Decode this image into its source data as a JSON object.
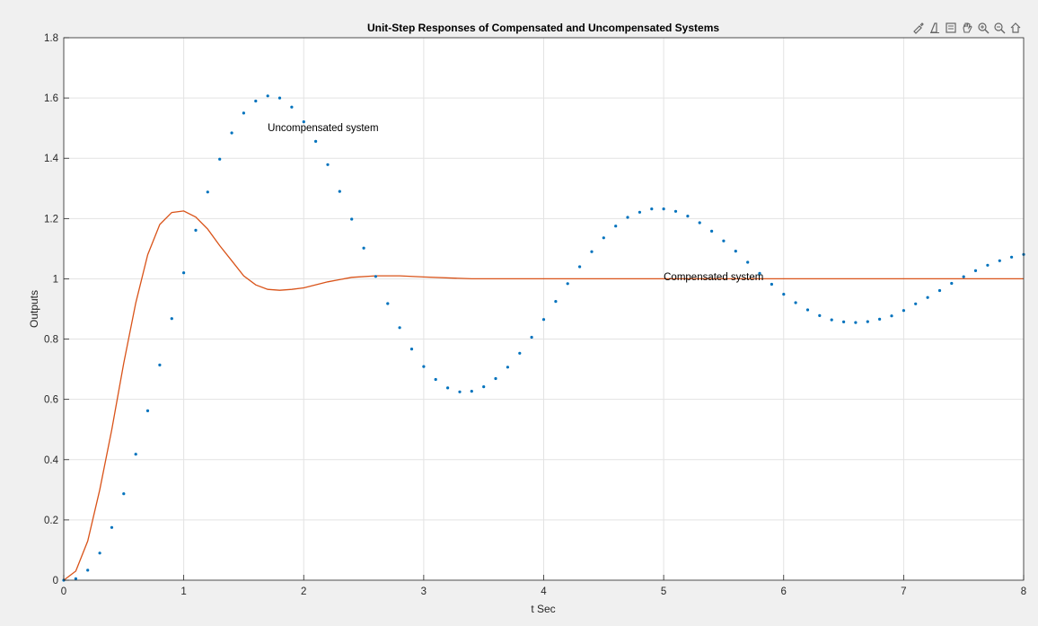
{
  "toolbar": {
    "buttons": [
      {
        "name": "brush-icon"
      },
      {
        "name": "data-tip-icon"
      },
      {
        "name": "export-icon"
      },
      {
        "name": "pan-icon"
      },
      {
        "name": "zoom-in-icon"
      },
      {
        "name": "zoom-out-icon"
      },
      {
        "name": "home-icon"
      }
    ]
  },
  "chart_data": {
    "type": "line",
    "title": "Unit-Step Responses of Compensated and Uncompensated Systems",
    "xlabel": "t Sec",
    "ylabel": "Outputs",
    "xlim": [
      0,
      8
    ],
    "ylim": [
      0,
      1.8
    ],
    "xticks": [
      "0",
      "1",
      "2",
      "3",
      "4",
      "5",
      "6",
      "7",
      "8"
    ],
    "yticks": [
      "0",
      "0.2",
      "0.4",
      "0.6",
      "0.8",
      "1",
      "1.2",
      "1.4",
      "1.6",
      "1.8"
    ],
    "grid": true,
    "annotations": [
      {
        "text": "Uncompensated system",
        "x": 1.7,
        "y": 1.49
      },
      {
        "text": "Compensated system",
        "x": 5.0,
        "y": 0.995
      }
    ],
    "colors": {
      "uncompensated": "#0072bd",
      "compensated": "#d95319",
      "grid": "#e3e3e3",
      "axes_bg": "#ffffff"
    },
    "series": [
      {
        "style": "dots",
        "x": [
          0,
          0.1,
          0.2,
          0.3,
          0.4,
          0.5,
          0.6,
          0.7,
          0.8,
          0.9,
          1.0,
          1.1,
          1.2,
          1.3,
          1.4,
          1.5,
          1.6,
          1.7,
          1.8,
          1.9,
          2.0,
          2.1,
          2.2,
          2.3,
          2.4,
          2.5,
          2.6,
          2.7,
          2.8,
          2.9,
          3.0,
          3.1,
          3.2,
          3.3,
          3.4,
          3.5,
          3.6,
          3.7,
          3.8,
          3.9,
          4.0,
          4.1,
          4.2,
          4.3,
          4.4,
          4.5,
          4.6,
          4.7,
          4.8,
          4.9,
          5.0,
          5.1,
          5.2,
          5.3,
          5.4,
          5.5,
          5.6,
          5.7,
          5.8,
          5.9,
          6.0,
          6.1,
          6.2,
          6.3,
          6.4,
          6.5,
          6.6,
          6.7,
          6.8,
          6.9,
          7.0,
          7.1,
          7.2,
          7.3,
          7.4,
          7.5,
          7.6,
          7.7,
          7.8,
          7.9,
          8.0
        ],
        "y": [
          0,
          0.005,
          0.033,
          0.09,
          0.175,
          0.287,
          0.418,
          0.562,
          0.714,
          0.868,
          1.02,
          1.161,
          1.288,
          1.397,
          1.484,
          1.55,
          1.59,
          1.607,
          1.6,
          1.57,
          1.521,
          1.456,
          1.379,
          1.29,
          1.198,
          1.102,
          1.008,
          0.918,
          0.838,
          0.767,
          0.709,
          0.666,
          0.638,
          0.625,
          0.627,
          0.642,
          0.669,
          0.707,
          0.753,
          0.806,
          0.865,
          0.925,
          0.984,
          1.04,
          1.09,
          1.136,
          1.175,
          1.204,
          1.221,
          1.232,
          1.232,
          1.224,
          1.208,
          1.186,
          1.158,
          1.126,
          1.092,
          1.055,
          1.018,
          0.982,
          0.949,
          0.921,
          0.897,
          0.878,
          0.864,
          0.857,
          0.855,
          0.858,
          0.866,
          0.877,
          0.895,
          0.917,
          0.938,
          0.961,
          0.985,
          1.007,
          1.027,
          1.045,
          1.06,
          1.072,
          1.081
        ]
      },
      {
        "style": "line",
        "x": [
          0,
          0.1,
          0.2,
          0.3,
          0.4,
          0.5,
          0.6,
          0.7,
          0.8,
          0.9,
          1.0,
          1.1,
          1.2,
          1.3,
          1.4,
          1.5,
          1.6,
          1.7,
          1.8,
          1.9,
          2.0,
          2.2,
          2.4,
          2.6,
          2.8,
          3.0,
          3.4,
          4.0,
          5.0,
          6.0,
          7.0,
          8.0
        ],
        "y": [
          0,
          0.03,
          0.13,
          0.3,
          0.5,
          0.72,
          0.92,
          1.08,
          1.18,
          1.22,
          1.225,
          1.205,
          1.165,
          1.11,
          1.06,
          1.01,
          0.98,
          0.965,
          0.962,
          0.965,
          0.97,
          0.99,
          1.005,
          1.01,
          1.01,
          1.006,
          1.0,
          1.0,
          1.0,
          1.0,
          1.0,
          1.0
        ]
      }
    ]
  }
}
